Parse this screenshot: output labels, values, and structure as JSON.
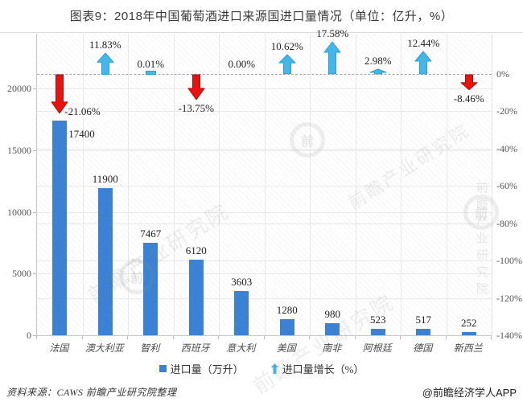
{
  "title": "图表9：2018年中国葡萄酒进口来源国进口量情况（单位：亿升，%）",
  "chart_data": {
    "type": "bar",
    "title": "2018年中国葡萄酒进口来源国进口量情况",
    "unit_note": "单位：亿升，%",
    "categories": [
      "法国",
      "澳大利亚",
      "智利",
      "西班牙",
      "意大利",
      "美国",
      "南非",
      "阿根廷",
      "德国",
      "新西兰"
    ],
    "series": [
      {
        "name": "进口量（万升）",
        "type": "bar",
        "axis": "left",
        "color": "#3b82d4",
        "values": [
          17400,
          11900,
          7467,
          6120,
          3603,
          1280,
          980,
          523,
          517,
          252
        ],
        "labels": [
          "17400",
          "11900",
          "7467",
          "6120",
          "3603",
          "1280",
          "980",
          "523",
          "517",
          "252"
        ]
      },
      {
        "name": "进口量增长（%）",
        "type": "arrow-marker",
        "axis": "right",
        "up_color": "#44b7e8",
        "up_stroke": "#2aa0d6",
        "down_color": "#e8120e",
        "down_stroke": "#b30c09",
        "values": [
          -21.06,
          11.83,
          0.01,
          -13.75,
          0.0,
          10.62,
          17.58,
          2.98,
          12.44,
          -8.46
        ],
        "labels": [
          "-21.06%",
          "11.83%",
          "0.01%",
          "-13.75%",
          "0.00%",
          "10.62%",
          "17.58%",
          "2.98%",
          "12.44%",
          "-8.46%"
        ]
      }
    ],
    "left_axis": {
      "ticks": [
        0,
        5000,
        10000,
        15000,
        20000
      ],
      "max": 20000
    },
    "right_axis": {
      "ticks": [
        "0%",
        "-20%",
        "-40%",
        "-60%",
        "-80%",
        "-100%",
        "-120%",
        "-140%"
      ],
      "min": -140,
      "max": 0
    },
    "grid": true,
    "legend_position": "bottom",
    "legend": [
      "进口量（万升）",
      "进口量增长（%）"
    ]
  },
  "footer": {
    "source": "资料来源：CAWS  前瞻产业研究院整理",
    "credit": "@前瞻经济学人APP"
  },
  "watermark": {
    "text": "前瞻产业研究院",
    "short": "前"
  }
}
